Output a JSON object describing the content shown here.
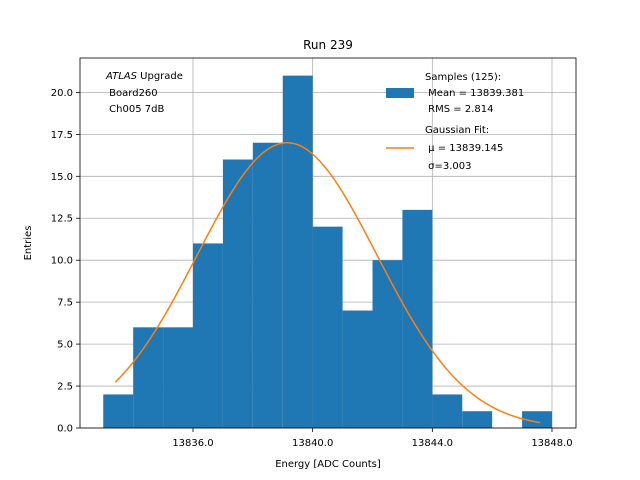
{
  "chart_data": {
    "type": "bar",
    "title": "Run 239",
    "xlabel": "Energy [ADC Counts]",
    "ylabel": "Entries",
    "xlim": [
      12830.7,
      13848.5
    ],
    "ylim": [
      0,
      22.05
    ],
    "x_ticks": [
      13836.0,
      13840.0,
      13844.0,
      13848.0
    ],
    "x_tick_labels": [
      "13836.0",
      "13840.0",
      "13844.0",
      "13848.0"
    ],
    "y_ticks": [
      0,
      2.5,
      5,
      7.5,
      10,
      12.5,
      15,
      17.5,
      20
    ],
    "y_tick_labels": [
      "0.0",
      "2.5",
      "5.0",
      "7.5",
      "10.0",
      "12.5",
      "15.0",
      "17.5",
      "20.0"
    ],
    "grid": true,
    "histogram": {
      "name": "Samples (125):",
      "color": "#1f77b4",
      "bin_edges": [
        13833,
        13834,
        13835,
        13836,
        13837,
        13838,
        13839,
        13840,
        13841,
        13842,
        13843,
        13844,
        13845,
        13846,
        13847,
        13848
      ],
      "counts": [
        2,
        6,
        6,
        11,
        16,
        17,
        21,
        12,
        7,
        10,
        13,
        2,
        1,
        0,
        1
      ]
    },
    "fit": {
      "name": "Gaussian Fit:",
      "color": "#ff7f0e",
      "amplitude": 17.0,
      "mean": 13839.145,
      "sigma": 3.003,
      "x_range": [
        13833.4,
        13847.6
      ]
    },
    "legend": {
      "position": "top-right",
      "samples_lines": [
        "Samples (125):",
        " Mean = 13839.381",
        " RMS = 2.814"
      ],
      "fit_lines": [
        "Gaussian Fit:",
        " μ = 13839.145",
        " σ=3.003"
      ]
    },
    "annotation": {
      "position": "top-left",
      "atlas": "ATLAS",
      "upgrade": " Upgrade",
      "line2": " Board260",
      "line3": " Ch005 7dB"
    }
  }
}
